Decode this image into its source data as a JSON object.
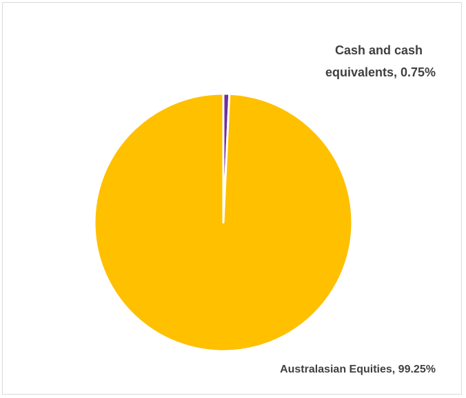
{
  "chart_data": {
    "type": "pie",
    "title": "",
    "slices": [
      {
        "label": "Australasian Equities",
        "value": 99.25,
        "data_label": "Australasian Equities, 99.25%",
        "color": "#FFC000"
      },
      {
        "label": "Cash and cash equivalents",
        "value": 0.75,
        "data_label": "Cash and cash equivalents, 0.75%",
        "color": "#7030A0"
      }
    ],
    "start_angle_deg": 0,
    "direction": "clockwise",
    "slice_separator_color": "#ffffff",
    "legend": "none"
  }
}
